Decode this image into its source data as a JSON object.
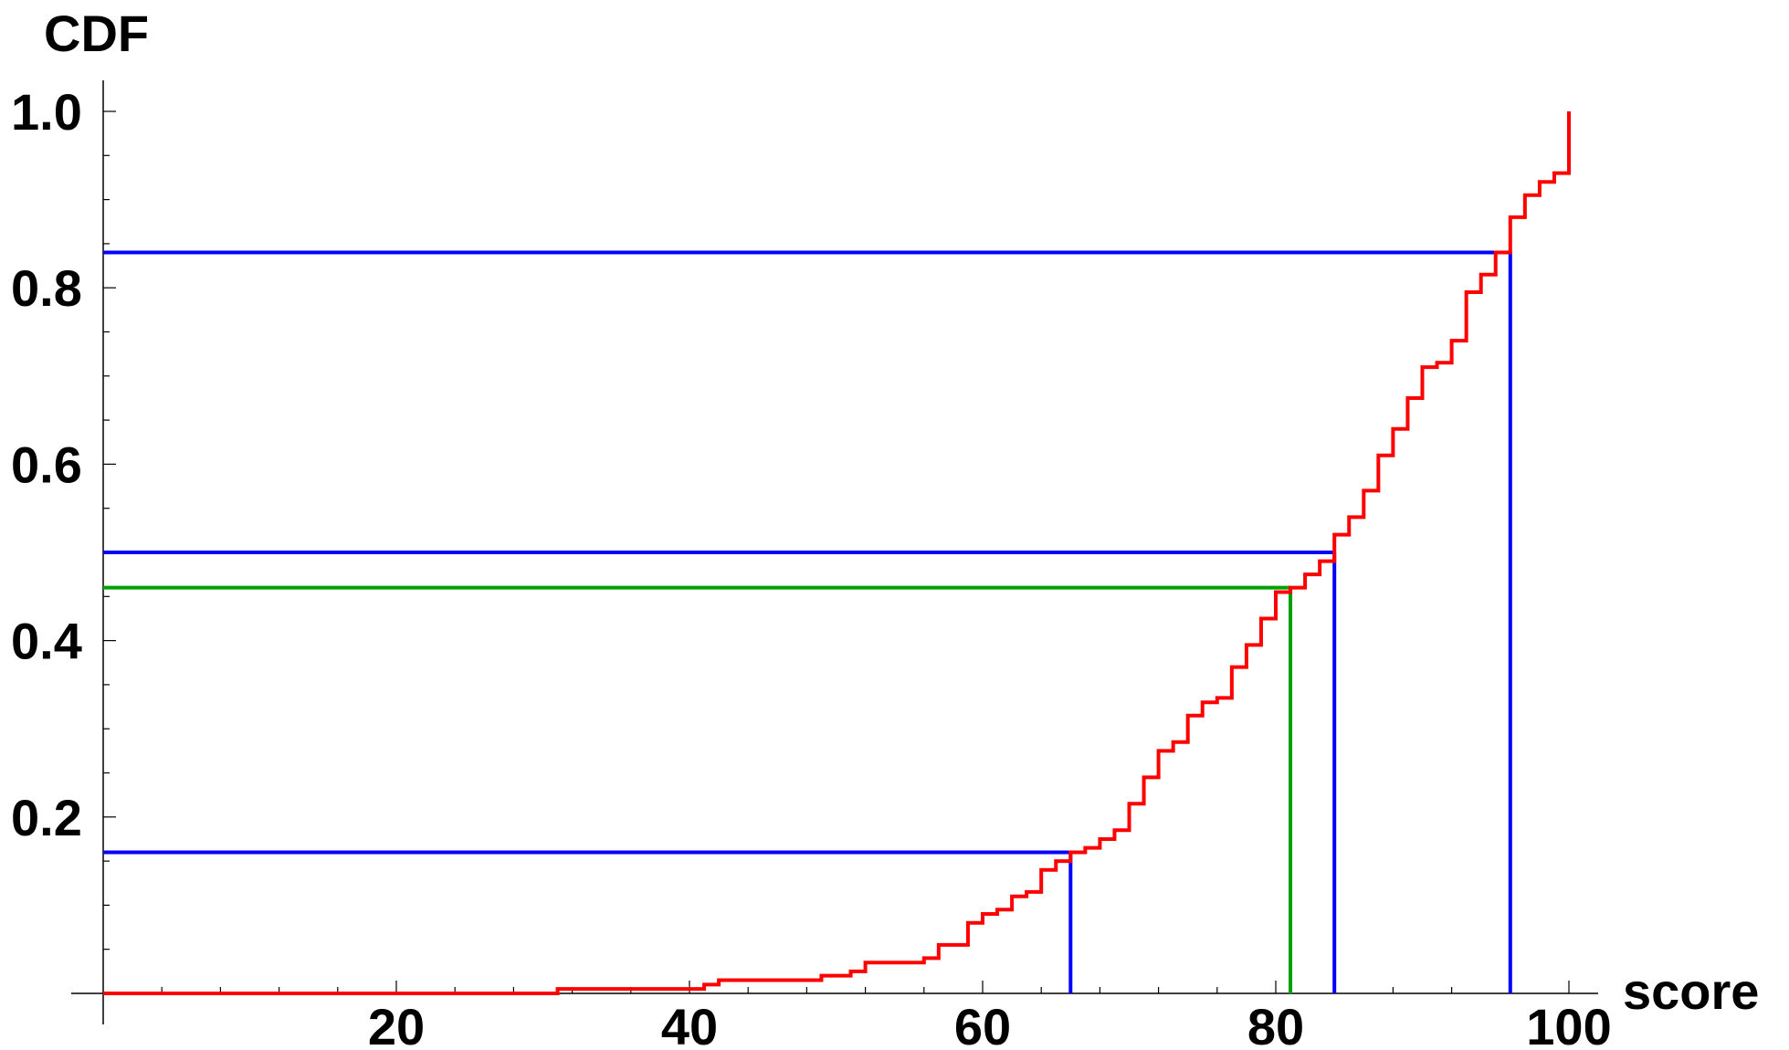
{
  "chart_data": {
    "type": "line",
    "step": true,
    "xlabel": "score",
    "ylabel": "CDF",
    "xlim": [
      0,
      100
    ],
    "ylim": [
      0,
      1.0
    ],
    "x_ticks": [
      20,
      40,
      60,
      80,
      100
    ],
    "y_ticks": [
      0.2,
      0.4,
      0.6,
      0.8,
      1.0
    ],
    "x_tick_labels": [
      "20",
      "40",
      "60",
      "80",
      "100"
    ],
    "y_tick_labels": [
      "0.2",
      "0.4",
      "0.6",
      "0.8",
      "1.0"
    ],
    "grid": false,
    "series": [
      {
        "color": "#ff0000",
        "x": [
          0,
          31,
          41,
          42,
          49,
          51,
          52,
          56,
          57,
          59,
          60,
          61,
          62,
          63,
          64,
          65,
          66,
          67,
          68,
          69,
          70,
          71,
          72,
          73,
          74,
          75,
          76,
          77,
          78,
          79,
          80,
          81,
          82,
          83,
          84,
          85,
          86,
          87,
          88,
          89,
          90,
          91,
          92,
          93,
          94,
          95,
          96,
          97,
          98,
          99,
          100
        ],
        "y": [
          0,
          0.005,
          0.01,
          0.015,
          0.02,
          0.025,
          0.035,
          0.04,
          0.055,
          0.08,
          0.09,
          0.095,
          0.11,
          0.115,
          0.14,
          0.15,
          0.16,
          0.165,
          0.175,
          0.185,
          0.215,
          0.245,
          0.275,
          0.285,
          0.315,
          0.33,
          0.335,
          0.37,
          0.395,
          0.425,
          0.455,
          0.46,
          0.475,
          0.49,
          0.52,
          0.54,
          0.57,
          0.61,
          0.64,
          0.675,
          0.71,
          0.715,
          0.74,
          0.795,
          0.815,
          0.84,
          0.88,
          0.905,
          0.92,
          0.93,
          1.0
        ]
      },
      {
        "color": "#0000ff",
        "type": "guide",
        "points": [
          [
            66,
            0.16
          ],
          [
            84,
            0.5
          ],
          [
            96,
            0.84
          ]
        ]
      },
      {
        "color": "#00a000",
        "type": "guide",
        "points": [
          [
            81,
            0.46
          ]
        ]
      }
    ]
  }
}
